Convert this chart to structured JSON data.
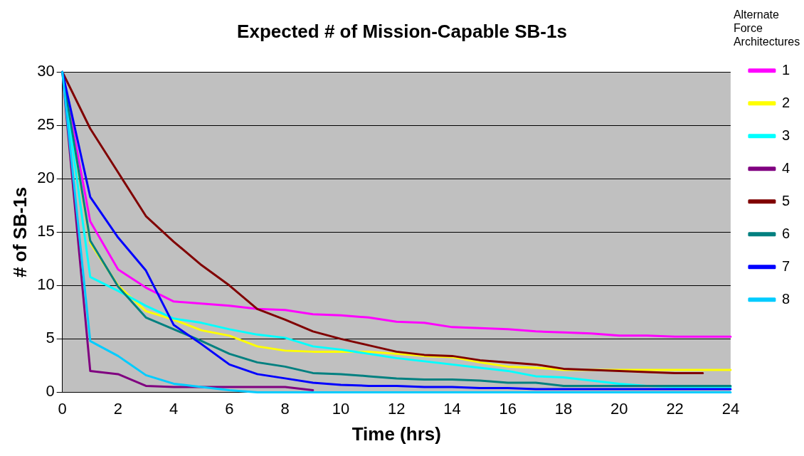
{
  "chart_data": {
    "type": "line",
    "title": "Expected # of Mission-Capable SB-1s",
    "xlabel": "Time (hrs)",
    "ylabel": "# of SB-1s",
    "legend_title": "Alternate Force Architectures",
    "x": [
      0,
      1,
      2,
      3,
      4,
      5,
      6,
      7,
      8,
      9,
      10,
      11,
      12,
      13,
      14,
      15,
      16,
      17,
      18,
      19,
      20,
      21,
      22,
      23,
      24
    ],
    "series": [
      {
        "name": "1",
        "color": "#ff00ff",
        "values": [
          30,
          16,
          11.5,
          9.8,
          8.5,
          8.3,
          8.1,
          7.8,
          7.7,
          7.3,
          7.2,
          7.0,
          6.6,
          6.5,
          6.1,
          6.0,
          5.9,
          5.7,
          5.6,
          5.5,
          5.3,
          5.3,
          5.2,
          5.2,
          5.2
        ]
      },
      {
        "name": "2",
        "color": "#ffff00",
        "values": [
          30,
          14,
          10.0,
          7.6,
          6.8,
          5.8,
          5.3,
          4.3,
          3.9,
          3.8,
          3.8,
          3.8,
          3.6,
          3.4,
          3.3,
          2.8,
          2.4,
          2.3,
          2.1,
          2.1,
          2.1,
          2.1,
          2.1,
          2.1,
          2.1
        ]
      },
      {
        "name": "3",
        "color": "#00ffff",
        "values": [
          30,
          10.8,
          9.5,
          8.1,
          6.9,
          6.5,
          5.9,
          5.4,
          5.1,
          4.3,
          4.0,
          3.6,
          3.2,
          2.9,
          2.6,
          2.3,
          2.0,
          1.5,
          1.4,
          1.1,
          0.8,
          0.6,
          0.5,
          0.5,
          0.5
        ]
      },
      {
        "name": "4",
        "color": "#800080",
        "values": [
          30,
          2.0,
          1.7,
          0.6,
          0.5,
          0.5,
          0.5,
          0.5,
          0.5,
          0.2,
          null,
          null,
          null,
          null,
          null,
          null,
          null,
          null,
          null,
          null,
          null,
          null,
          null,
          null,
          null
        ]
      },
      {
        "name": "5",
        "color": "#800000",
        "values": [
          30,
          24.7,
          20.6,
          16.5,
          14.1,
          11.9,
          10.0,
          7.8,
          6.8,
          5.7,
          5.0,
          4.4,
          3.8,
          3.5,
          3.4,
          3.0,
          2.8,
          2.6,
          2.2,
          2.1,
          2.0,
          1.9,
          1.8,
          1.8,
          null
        ]
      },
      {
        "name": "6",
        "color": "#008080",
        "values": [
          30,
          14.2,
          9.9,
          7.0,
          5.9,
          4.8,
          3.6,
          2.8,
          2.4,
          1.8,
          1.7,
          1.5,
          1.3,
          1.2,
          1.2,
          1.1,
          0.9,
          0.9,
          0.6,
          0.6,
          0.6,
          0.6,
          0.6,
          0.6,
          0.6
        ]
      },
      {
        "name": "7",
        "color": "#0000ff",
        "values": [
          30,
          18.3,
          14.5,
          11.4,
          6.3,
          4.5,
          2.6,
          1.7,
          1.3,
          0.9,
          0.7,
          0.6,
          0.6,
          0.5,
          0.5,
          0.4,
          0.4,
          0.3,
          0.3,
          0.3,
          0.3,
          0.3,
          0.3,
          0.3,
          0.3
        ]
      },
      {
        "name": "8",
        "color": "#00ccff",
        "values": [
          30,
          4.8,
          3.4,
          1.6,
          0.8,
          0.5,
          0.2,
          0,
          0,
          0,
          0,
          0,
          0,
          0,
          0,
          0,
          0,
          0,
          0,
          0,
          0,
          0,
          0,
          0,
          0
        ]
      }
    ],
    "xlim": [
      0,
      24
    ],
    "xticks": [
      0,
      2,
      4,
      6,
      8,
      10,
      12,
      14,
      16,
      18,
      20,
      22,
      24
    ],
    "ylim": [
      0,
      30
    ],
    "yticks": [
      0,
      5,
      10,
      15,
      20,
      25,
      30
    ],
    "grid": "y",
    "legend": "right",
    "marker": "none"
  }
}
